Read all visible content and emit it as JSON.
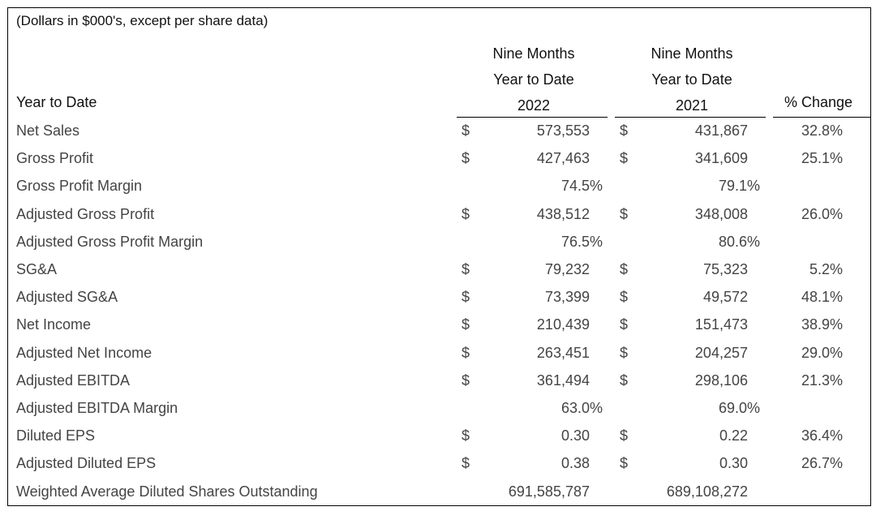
{
  "note": "(Dollars in $000's, except per share data)",
  "headers": {
    "row_label": "Year to Date",
    "col1": [
      "Nine Months",
      "Year to Date",
      "2022"
    ],
    "col2": [
      "Nine Months",
      "Year to Date",
      "2021"
    ],
    "change": "% Change"
  },
  "rows": [
    {
      "label": "Net Sales",
      "d1": "$",
      "v1": "573,553",
      "d2": "$",
      "v2": "431,867",
      "pc": "32.8%"
    },
    {
      "label": "Gross Profit",
      "d1": "$",
      "v1": "427,463",
      "d2": "$",
      "v2": "341,609",
      "pc": "25.1%"
    },
    {
      "label": "Gross Profit Margin",
      "m1": "74.5%",
      "m2": "79.1%"
    },
    {
      "label": "Adjusted Gross Profit",
      "d1": "$",
      "v1": "438,512",
      "d2": "$",
      "v2": "348,008",
      "pc": "26.0%"
    },
    {
      "label": "Adjusted Gross Profit Margin",
      "m1": "76.5%",
      "m2": "80.6%"
    },
    {
      "label": "SG&A",
      "d1": "$",
      "v1": "79,232",
      "d2": "$",
      "v2": "75,323",
      "pc": "5.2%"
    },
    {
      "label": "Adjusted SG&A",
      "d1": "$",
      "v1": "73,399",
      "d2": "$",
      "v2": "49,572",
      "pc": "48.1%"
    },
    {
      "label": "Net Income",
      "d1": "$",
      "v1": "210,439",
      "d2": "$",
      "v2": "151,473",
      "pc": "38.9%"
    },
    {
      "label": "Adjusted Net Income",
      "d1": "$",
      "v1": "263,451",
      "d2": "$",
      "v2": "204,257",
      "pc": "29.0%"
    },
    {
      "label": "Adjusted EBITDA",
      "d1": "$",
      "v1": "361,494",
      "d2": "$",
      "v2": "298,106",
      "pc": "21.3%"
    },
    {
      "label": "Adjusted EBITDA Margin",
      "m1": "63.0%",
      "m2": "69.0%"
    },
    {
      "label": "Diluted EPS",
      "d1": "$",
      "v1": "0.30",
      "d2": "$",
      "v2": "0.22",
      "pc": "36.4%"
    },
    {
      "label": "Adjusted Diluted EPS",
      "d1": "$",
      "v1": "0.38",
      "d2": "$",
      "v2": "0.30",
      "pc": "26.7%"
    },
    {
      "label": "Weighted Average Diluted Shares Outstanding",
      "ws1": "691,585,787",
      "ws2": "689,108,272"
    }
  ]
}
